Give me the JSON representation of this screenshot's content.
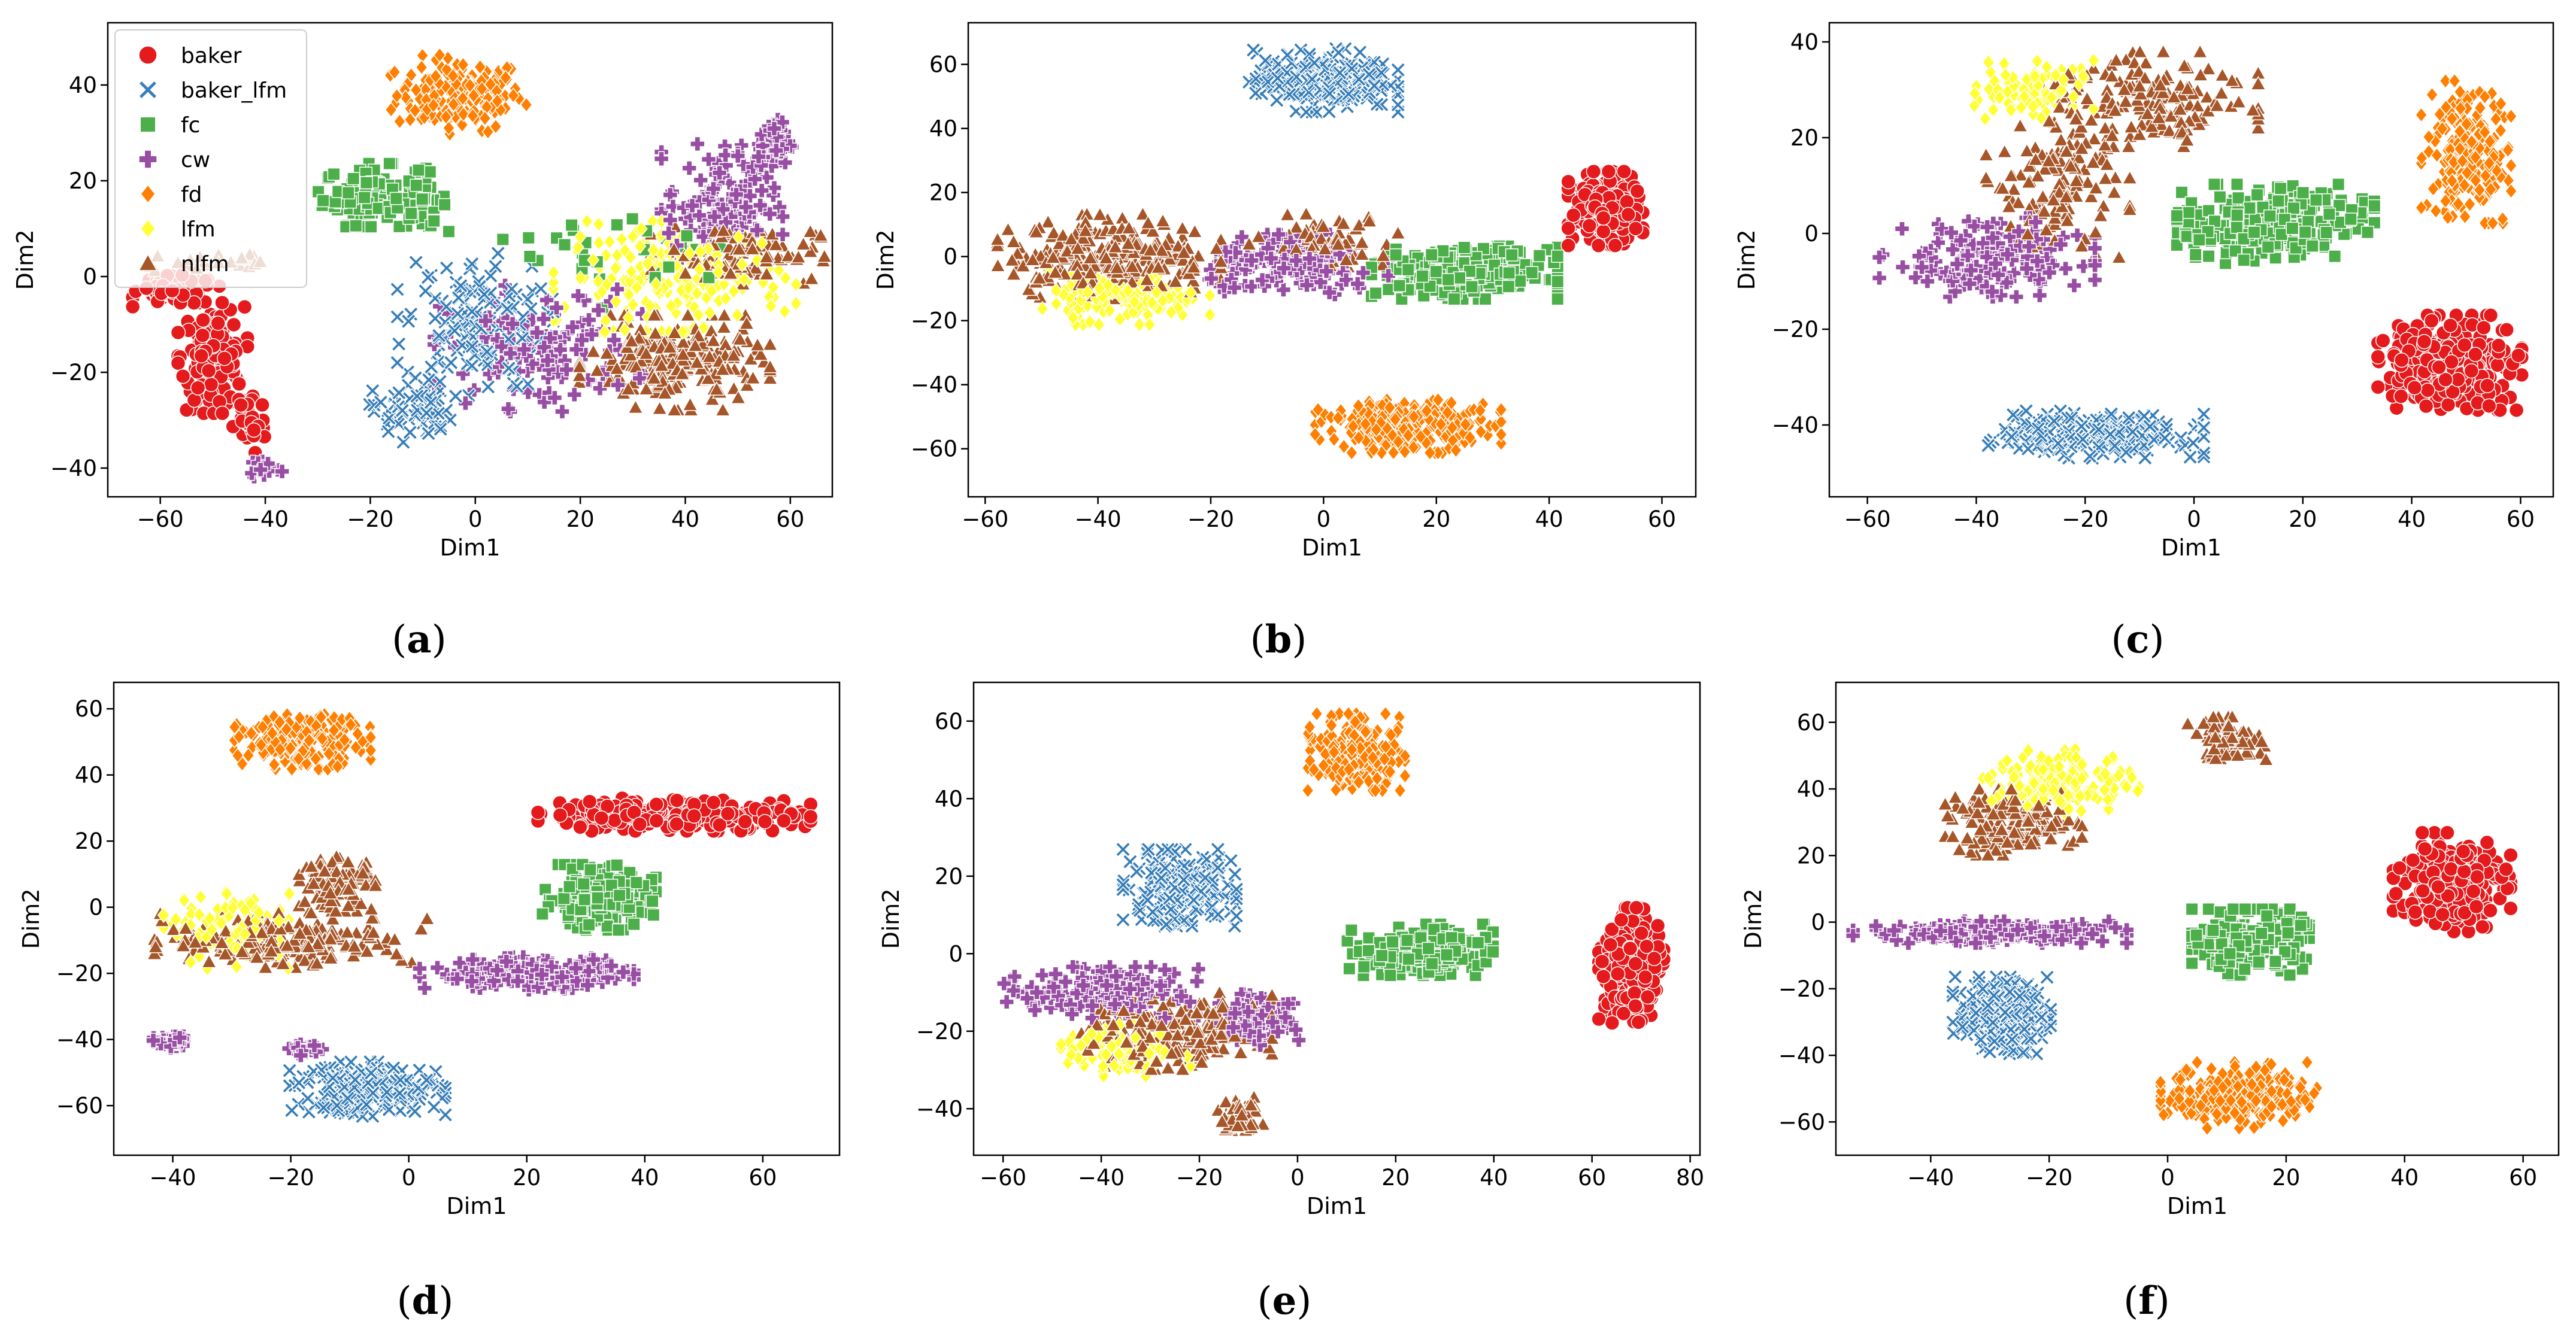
{
  "legend": {
    "entries": [
      {
        "key": "baker",
        "label": "baker",
        "color": "#e41a1c",
        "marker": "circle"
      },
      {
        "key": "baker_lfm",
        "label": "baker_lfm",
        "color": "#377eb8",
        "marker": "x"
      },
      {
        "key": "fc",
        "label": "fc",
        "color": "#4daf4a",
        "marker": "square"
      },
      {
        "key": "cw",
        "label": "cw",
        "color": "#984ea3",
        "marker": "plus"
      },
      {
        "key": "fd",
        "label": "fd",
        "color": "#ff7f00",
        "marker": "diamond"
      },
      {
        "key": "lfm",
        "label": "lfm",
        "color": "#ffff33",
        "marker": "diamond"
      },
      {
        "key": "nlfm",
        "label": "nlfm",
        "color": "#a65628",
        "marker": "triangle"
      }
    ]
  },
  "chart_data": [
    {
      "type": "scatter",
      "panel": "(a)",
      "xlabel": "Dim1",
      "ylabel": "Dim2",
      "xlim": [
        -70,
        68
      ],
      "ylim": [
        -46,
        53
      ],
      "xticks": [
        -60,
        -40,
        -20,
        0,
        20,
        40,
        60
      ],
      "yticks": [
        -40,
        -20,
        0,
        20,
        40
      ],
      "legend_position": "top-left",
      "clusters": [
        {
          "series": "fd",
          "n": 180,
          "center": [
            -3,
            38
          ],
          "spread": [
            8,
            5
          ]
        },
        {
          "series": "fc",
          "n": 110,
          "center": [
            -20,
            17
          ],
          "spread": [
            6,
            4
          ]
        },
        {
          "series": "fc",
          "n": 40,
          "center": [
            -10,
            16
          ],
          "spread": [
            3,
            4
          ]
        },
        {
          "series": "nlfm",
          "n": 25,
          "center": [
            -50,
            3
          ],
          "spread": [
            10,
            2
          ]
        },
        {
          "series": "baker",
          "n": 100,
          "center": [
            -57,
            -3
          ],
          "spread": [
            5,
            2
          ]
        },
        {
          "series": "baker",
          "n": 140,
          "center": [
            -50,
            -17
          ],
          "spread": [
            4,
            7
          ]
        },
        {
          "series": "baker",
          "n": 40,
          "center": [
            -43,
            -30
          ],
          "spread": [
            2,
            5
          ]
        },
        {
          "series": "cw",
          "n": 20,
          "center": [
            -40,
            -40
          ],
          "spread": [
            2,
            1.5
          ]
        },
        {
          "series": "baker_lfm",
          "n": 140,
          "center": [
            0,
            -10
          ],
          "spread": [
            9,
            9
          ]
        },
        {
          "series": "baker_lfm",
          "n": 60,
          "center": [
            -12,
            -28
          ],
          "spread": [
            5,
            4
          ]
        },
        {
          "series": "cw",
          "n": 130,
          "center": [
            12,
            -15
          ],
          "spread": [
            12,
            8
          ]
        },
        {
          "series": "lfm",
          "n": 200,
          "center": [
            38,
            0
          ],
          "spread": [
            14,
            7
          ]
        },
        {
          "series": "nlfm",
          "n": 220,
          "center": [
            38,
            -18
          ],
          "spread": [
            11,
            6
          ]
        },
        {
          "series": "nlfm",
          "n": 100,
          "center": [
            50,
            5
          ],
          "spread": [
            10,
            4
          ]
        },
        {
          "series": "cw",
          "n": 120,
          "center": [
            47,
            15
          ],
          "spread": [
            7,
            8
          ]
        },
        {
          "series": "cw",
          "n": 50,
          "center": [
            57,
            28
          ],
          "spread": [
            2,
            3
          ]
        },
        {
          "series": "fc",
          "n": 30,
          "center": [
            30,
            5
          ],
          "spread": [
            15,
            7
          ]
        }
      ]
    },
    {
      "type": "scatter",
      "panel": "(b)",
      "xlabel": "Dim1",
      "ylabel": "Dim2",
      "xlim": [
        -63,
        66
      ],
      "ylim": [
        -75,
        73
      ],
      "xticks": [
        -60,
        -40,
        -20,
        0,
        20,
        40,
        60
      ],
      "yticks": [
        -60,
        -40,
        -20,
        0,
        20,
        40,
        60
      ],
      "clusters": [
        {
          "series": "baker_lfm",
          "n": 240,
          "center": [
            0,
            55
          ],
          "spread": [
            8,
            6
          ]
        },
        {
          "series": "nlfm",
          "n": 280,
          "center": [
            -38,
            0
          ],
          "spread": [
            12,
            8
          ]
        },
        {
          "series": "lfm",
          "n": 140,
          "center": [
            -35,
            -13
          ],
          "spread": [
            9,
            5
          ]
        },
        {
          "series": "cw",
          "n": 160,
          "center": [
            -5,
            -3
          ],
          "spread": [
            10,
            6
          ]
        },
        {
          "series": "nlfm",
          "n": 80,
          "center": [
            0,
            5
          ],
          "spread": [
            8,
            5
          ]
        },
        {
          "series": "fc",
          "n": 260,
          "center": [
            25,
            -5
          ],
          "spread": [
            10,
            5
          ]
        },
        {
          "series": "baker",
          "n": 240,
          "center": [
            50,
            15
          ],
          "spread": [
            4,
            7
          ]
        },
        {
          "series": "fd",
          "n": 260,
          "center": [
            15,
            -53
          ],
          "spread": [
            10,
            5
          ]
        }
      ]
    },
    {
      "type": "scatter",
      "panel": "(c)",
      "xlabel": "Dim1",
      "ylabel": "Dim2",
      "xlim": [
        -67,
        66
      ],
      "ylim": [
        -55,
        44
      ],
      "xticks": [
        -60,
        -40,
        -20,
        0,
        20,
        40,
        60
      ],
      "yticks": [
        -40,
        -20,
        0,
        20,
        40
      ],
      "clusters": [
        {
          "series": "lfm",
          "n": 90,
          "center": [
            -30,
            30
          ],
          "spread": [
            7,
            4
          ]
        },
        {
          "series": "nlfm",
          "n": 160,
          "center": [
            -8,
            28
          ],
          "spread": [
            12,
            6
          ]
        },
        {
          "series": "nlfm",
          "n": 140,
          "center": [
            -25,
            10
          ],
          "spread": [
            8,
            10
          ]
        },
        {
          "series": "cw",
          "n": 160,
          "center": [
            -38,
            -5
          ],
          "spread": [
            12,
            5
          ]
        },
        {
          "series": "fc",
          "n": 250,
          "center": [
            15,
            2
          ],
          "spread": [
            11,
            5
          ]
        },
        {
          "series": "fd",
          "n": 220,
          "center": [
            50,
            17
          ],
          "spread": [
            5,
            9
          ]
        },
        {
          "series": "baker",
          "n": 300,
          "center": [
            47,
            -27
          ],
          "spread": [
            8,
            6
          ]
        },
        {
          "series": "baker_lfm",
          "n": 200,
          "center": [
            -18,
            -42
          ],
          "spread": [
            12,
            3
          ]
        }
      ]
    },
    {
      "type": "scatter",
      "panel": "(d)",
      "xlabel": "Dim1",
      "ylabel": "Dim2",
      "xlim": [
        -50,
        73
      ],
      "ylim": [
        -75,
        68
      ],
      "xticks": [
        -40,
        -20,
        0,
        20,
        40,
        60
      ],
      "yticks": [
        -60,
        -40,
        -20,
        0,
        20,
        40,
        60
      ],
      "clusters": [
        {
          "series": "fd",
          "n": 220,
          "center": [
            -18,
            50
          ],
          "spread": [
            7,
            5
          ]
        },
        {
          "series": "baker",
          "n": 280,
          "center": [
            45,
            28
          ],
          "spread": [
            14,
            3
          ]
        },
        {
          "series": "fc",
          "n": 200,
          "center": [
            32,
            3
          ],
          "spread": [
            6,
            6
          ]
        },
        {
          "series": "nlfm",
          "n": 120,
          "center": [
            -12,
            7
          ],
          "spread": [
            4,
            5
          ]
        },
        {
          "series": "nlfm",
          "n": 200,
          "center": [
            -20,
            -10
          ],
          "spread": [
            14,
            5
          ]
        },
        {
          "series": "lfm",
          "n": 100,
          "center": [
            -30,
            -7
          ],
          "spread": [
            7,
            7
          ]
        },
        {
          "series": "cw",
          "n": 180,
          "center": [
            20,
            -20
          ],
          "spread": [
            11,
            3
          ]
        },
        {
          "series": "cw",
          "n": 40,
          "center": [
            -40,
            -41
          ],
          "spread": [
            2,
            1.2
          ]
        },
        {
          "series": "cw",
          "n": 30,
          "center": [
            -17,
            -43
          ],
          "spread": [
            2,
            1.2
          ]
        },
        {
          "series": "baker_lfm",
          "n": 220,
          "center": [
            -7,
            -55
          ],
          "spread": [
            8,
            5
          ]
        }
      ]
    },
    {
      "type": "scatter",
      "panel": "(e)",
      "xlabel": "Dim1",
      "ylabel": "Dim2",
      "xlim": [
        -66,
        82
      ],
      "ylim": [
        -52,
        70
      ],
      "xticks": [
        -60,
        -40,
        -20,
        0,
        20,
        40,
        60,
        80
      ],
      "yticks": [
        -40,
        -20,
        0,
        20,
        40,
        60
      ],
      "clusters": [
        {
          "series": "fd",
          "n": 240,
          "center": [
            12,
            52
          ],
          "spread": [
            6,
            6
          ]
        },
        {
          "series": "baker_lfm",
          "n": 220,
          "center": [
            -24,
            17
          ],
          "spread": [
            7,
            6
          ]
        },
        {
          "series": "fc",
          "n": 240,
          "center": [
            25,
            1
          ],
          "spread": [
            9,
            4
          ]
        },
        {
          "series": "baker",
          "n": 300,
          "center": [
            68,
            -3
          ],
          "spread": [
            4,
            9
          ]
        },
        {
          "series": "cw",
          "n": 150,
          "center": [
            -40,
            -10
          ],
          "spread": [
            12,
            4
          ]
        },
        {
          "series": "cw",
          "n": 100,
          "center": [
            -8,
            -17
          ],
          "spread": [
            5,
            4
          ]
        },
        {
          "series": "nlfm",
          "n": 220,
          "center": [
            -25,
            -20
          ],
          "spread": [
            12,
            6
          ]
        },
        {
          "series": "lfm",
          "n": 100,
          "center": [
            -35,
            -25
          ],
          "spread": [
            8,
            4
          ]
        },
        {
          "series": "nlfm",
          "n": 80,
          "center": [
            -12,
            -42
          ],
          "spread": [
            3,
            3
          ]
        }
      ]
    },
    {
      "type": "scatter",
      "panel": "(f)",
      "xlabel": "Dim1",
      "ylabel": "Dim2",
      "xlim": [
        -56,
        66
      ],
      "ylim": [
        -70,
        72
      ],
      "xticks": [
        -40,
        -20,
        0,
        20,
        40,
        60
      ],
      "yticks": [
        -60,
        -40,
        -20,
        0,
        20,
        40,
        60
      ],
      "clusters": [
        {
          "series": "nlfm",
          "n": 80,
          "center": [
            10,
            55
          ],
          "spread": [
            4,
            4
          ]
        },
        {
          "series": "lfm",
          "n": 160,
          "center": [
            -18,
            42
          ],
          "spread": [
            8,
            6
          ]
        },
        {
          "series": "nlfm",
          "n": 180,
          "center": [
            -26,
            30
          ],
          "spread": [
            7,
            6
          ]
        },
        {
          "series": "baker",
          "n": 260,
          "center": [
            48,
            12
          ],
          "spread": [
            6,
            9
          ]
        },
        {
          "series": "fc",
          "n": 200,
          "center": [
            14,
            -6
          ],
          "spread": [
            6,
            6
          ]
        },
        {
          "series": "cw",
          "n": 180,
          "center": [
            -30,
            -3
          ],
          "spread": [
            14,
            2
          ]
        },
        {
          "series": "baker_lfm",
          "n": 220,
          "center": [
            -28,
            -28
          ],
          "spread": [
            5,
            7
          ]
        },
        {
          "series": "fd",
          "n": 240,
          "center": [
            12,
            -52
          ],
          "spread": [
            8,
            6
          ]
        }
      ]
    }
  ]
}
